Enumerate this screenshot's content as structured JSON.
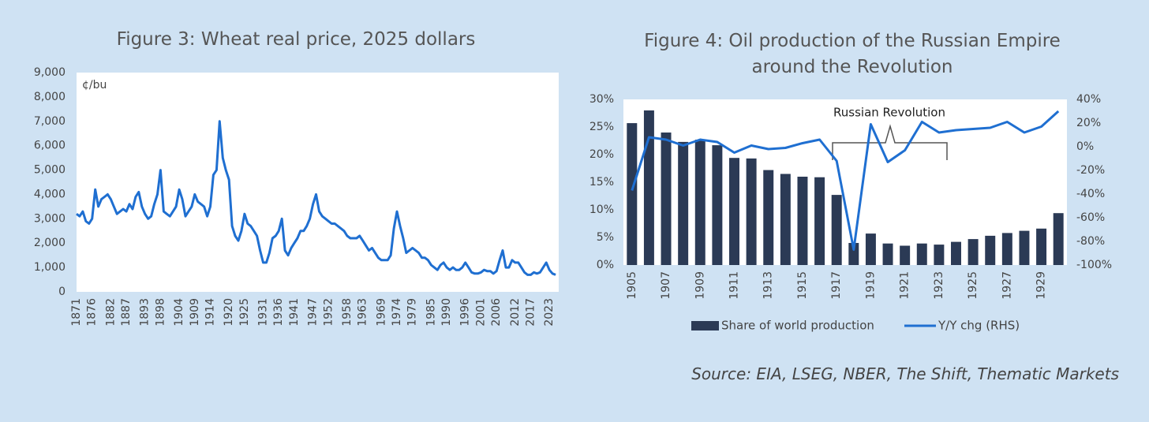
{
  "source": "Source: EIA, LSEG, NBER, The Shift, Thematic Markets",
  "chart_data": [
    {
      "type": "line",
      "title": "Figure 3: Wheat real price, 2025 dollars",
      "unit_label": "¢/bu",
      "color": "#1f6fd1",
      "grid": false,
      "x": [
        1871,
        1872,
        1873,
        1874,
        1875,
        1876,
        1877,
        1878,
        1879,
        1880,
        1881,
        1882,
        1883,
        1884,
        1885,
        1886,
        1887,
        1888,
        1889,
        1890,
        1891,
        1892,
        1893,
        1894,
        1895,
        1896,
        1897,
        1898,
        1899,
        1900,
        1901,
        1902,
        1903,
        1904,
        1905,
        1906,
        1907,
        1908,
        1909,
        1910,
        1911,
        1912,
        1913,
        1914,
        1915,
        1916,
        1917,
        1918,
        1919,
        1920,
        1921,
        1922,
        1923,
        1924,
        1925,
        1926,
        1927,
        1928,
        1929,
        1930,
        1931,
        1932,
        1933,
        1934,
        1935,
        1936,
        1937,
        1938,
        1939,
        1940,
        1941,
        1942,
        1943,
        1944,
        1945,
        1946,
        1947,
        1948,
        1949,
        1950,
        1951,
        1952,
        1953,
        1954,
        1955,
        1956,
        1957,
        1958,
        1959,
        1960,
        1961,
        1962,
        1963,
        1964,
        1965,
        1966,
        1967,
        1968,
        1969,
        1970,
        1971,
        1972,
        1973,
        1974,
        1975,
        1976,
        1977,
        1978,
        1979,
        1980,
        1981,
        1982,
        1983,
        1984,
        1985,
        1986,
        1987,
        1988,
        1989,
        1990,
        1991,
        1992,
        1993,
        1994,
        1995,
        1996,
        1997,
        1998,
        1999,
        2000,
        2001,
        2002,
        2003,
        2004,
        2005,
        2006,
        2007,
        2008,
        2009,
        2010,
        2011,
        2012,
        2013,
        2014,
        2015,
        2016,
        2017,
        2018,
        2019,
        2020,
        2021,
        2022,
        2023,
        2024,
        2025
      ],
      "values": [
        3200,
        3100,
        3300,
        2900,
        2800,
        3000,
        4200,
        3500,
        3800,
        3900,
        4000,
        3800,
        3500,
        3200,
        3300,
        3400,
        3300,
        3600,
        3400,
        3900,
        4100,
        3500,
        3200,
        3000,
        3100,
        3600,
        4000,
        5000,
        3300,
        3200,
        3100,
        3300,
        3500,
        4200,
        3800,
        3100,
        3300,
        3500,
        4000,
        3700,
        3600,
        3500,
        3100,
        3500,
        4800,
        5000,
        7000,
        5500,
        5000,
        4600,
        2700,
        2300,
        2100,
        2500,
        3200,
        2800,
        2700,
        2500,
        2300,
        1700,
        1200,
        1200,
        1600,
        2200,
        2300,
        2500,
        3000,
        1700,
        1500,
        1800,
        2000,
        2200,
        2500,
        2500,
        2700,
        3000,
        3600,
        4000,
        3300,
        3100,
        3000,
        2900,
        2800,
        2800,
        2700,
        2600,
        2500,
        2300,
        2200,
        2200,
        2200,
        2300,
        2100,
        1900,
        1700,
        1800,
        1600,
        1400,
        1300,
        1300,
        1300,
        1500,
        2600,
        3300,
        2700,
        2200,
        1600,
        1700,
        1800,
        1700,
        1600,
        1400,
        1400,
        1300,
        1100,
        1000,
        900,
        1100,
        1200,
        1000,
        900,
        1000,
        900,
        900,
        1000,
        1200,
        1000,
        800,
        750,
        750,
        800,
        900,
        850,
        850,
        750,
        850,
        1300,
        1700,
        1000,
        1000,
        1300,
        1200,
        1200,
        1000,
        800,
        700,
        700,
        800,
        750,
        800,
        1000,
        1200,
        900,
        750,
        700
      ],
      "xlim": [
        1871,
        2026
      ],
      "xticks": [
        1871,
        1876,
        1882,
        1887,
        1893,
        1898,
        1904,
        1909,
        1914,
        1920,
        1925,
        1931,
        1936,
        1941,
        1947,
        1952,
        1958,
        1963,
        1969,
        1974,
        1979,
        1985,
        1990,
        1996,
        2001,
        2006,
        2012,
        2017,
        2023
      ],
      "ylim": [
        0,
        9000
      ],
      "yticks": [
        0,
        {
          "value": 1000,
          "label": "1,000"
        },
        {
          "value": 2000,
          "label": "2,000"
        },
        {
          "value": 3000,
          "label": "3,000"
        },
        {
          "value": 4000,
          "label": "4,000"
        },
        {
          "value": 5000,
          "label": "5,000"
        },
        {
          "value": 6000,
          "label": "6,000"
        },
        {
          "value": 7000,
          "label": "7,000"
        },
        {
          "value": 8000,
          "label": "8,000"
        },
        {
          "value": 9000,
          "label": "9,000"
        }
      ]
    },
    {
      "type": "combo",
      "title": "Figure 4: Oil production of the Russian Empire around the Revolution",
      "annotation": "Russian Revolution",
      "grid": false,
      "categories": [
        "1905",
        null,
        "1907",
        null,
        "1909",
        null,
        "1911",
        null,
        "1913",
        null,
        "1915",
        null,
        "1917",
        null,
        "1919",
        null,
        "1921",
        null,
        "1923",
        null,
        "1925",
        null,
        "1927",
        null,
        "1929",
        null
      ],
      "series": [
        {
          "name": "Share of world production",
          "type": "bar",
          "color": "#2b3a55",
          "values": [
            25.7,
            28,
            24,
            22.3,
            22.7,
            21.7,
            19.4,
            19.3,
            17.2,
            16.5,
            16,
            15.9,
            12.7,
            4,
            5.7,
            3.9,
            3.5,
            3.9,
            3.7,
            4.2,
            4.7,
            5.3,
            5.8,
            6.2,
            6.6,
            9.4
          ]
        },
        {
          "name": "Y/Y chg (RHS)",
          "type": "line",
          "axis": "y2",
          "color": "#1f6fd1",
          "values": [
            -37,
            8,
            6,
            1,
            6,
            4,
            -5,
            1,
            -2,
            -1,
            3,
            6,
            -12,
            -87,
            19,
            -13,
            -3,
            21,
            12,
            14,
            15,
            16,
            21,
            12,
            17,
            30
          ]
        }
      ],
      "ylim": [
        0,
        30
      ],
      "yticks": [
        {
          "value": 0,
          "label": "0%"
        },
        {
          "value": 5,
          "label": "5%"
        },
        {
          "value": 10,
          "label": "10%"
        },
        {
          "value": 15,
          "label": "15%"
        },
        {
          "value": 20,
          "label": "20%"
        },
        {
          "value": 25,
          "label": "25%"
        },
        {
          "value": 30,
          "label": "30%"
        }
      ],
      "y2lim": [
        -100,
        40
      ],
      "y2ticks": [
        {
          "value": -100,
          "label": "-100%"
        },
        {
          "value": -80,
          "label": "-80%"
        },
        {
          "value": -60,
          "label": "-60%"
        },
        {
          "value": -40,
          "label": "-40%"
        },
        {
          "value": -20,
          "label": "-20%"
        },
        {
          "value": 0,
          "label": "0%"
        },
        {
          "value": 20,
          "label": "20%"
        },
        {
          "value": 40,
          "label": "40%"
        }
      ]
    }
  ]
}
